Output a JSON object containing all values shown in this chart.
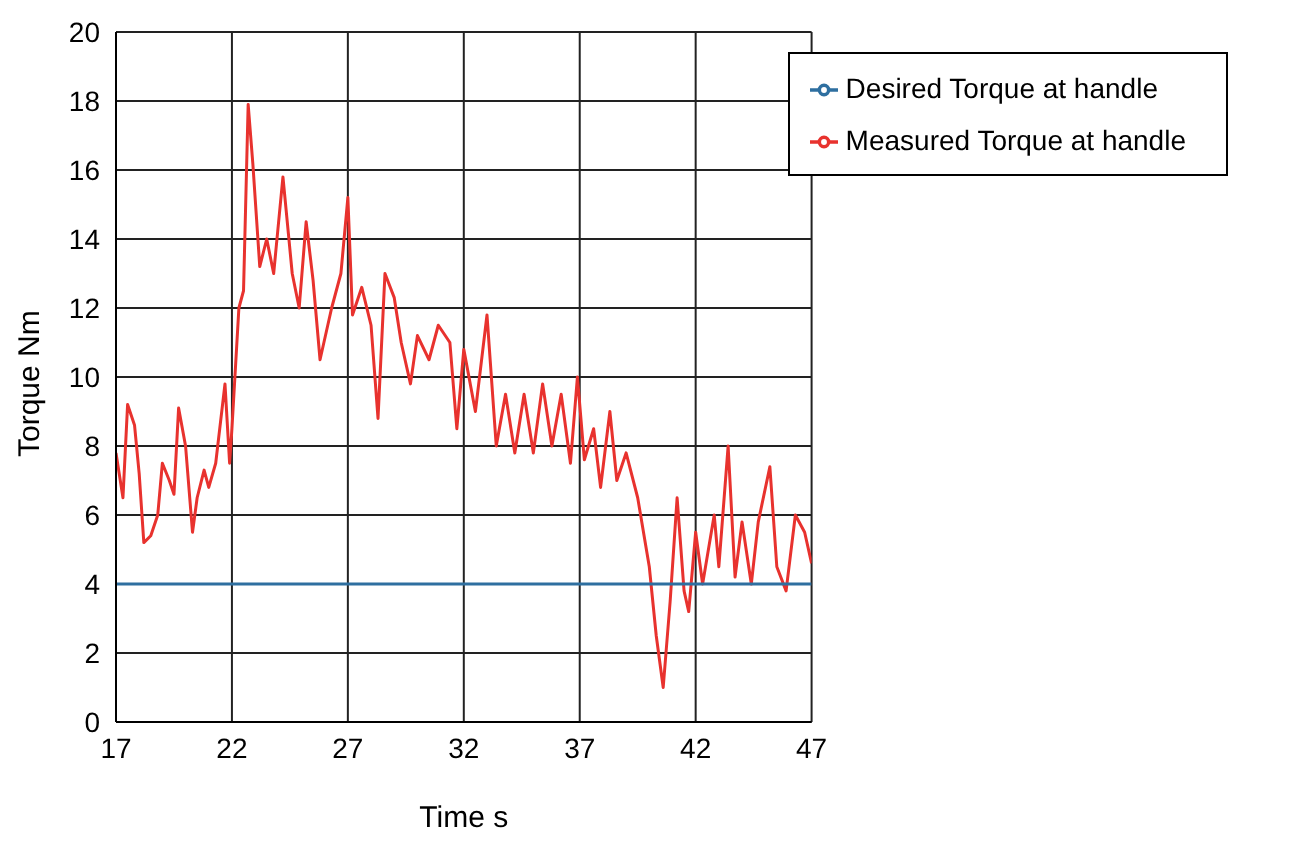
{
  "chart_data": {
    "type": "line",
    "xlabel": "Time  s",
    "ylabel": "Torque  Nm",
    "xlim": [
      17,
      47
    ],
    "xticks": [
      17,
      22,
      27,
      32,
      37,
      42,
      47
    ],
    "ylim": [
      0,
      20
    ],
    "yticks": [
      0,
      2,
      4,
      6,
      8,
      10,
      12,
      14,
      16,
      18,
      20
    ],
    "grid": true,
    "legend": "top right",
    "marker": "none",
    "line_style": "solid",
    "series": [
      {
        "name": "Measured Torque at handle",
        "color": "#e8322e",
        "x": [
          17.0,
          17.3,
          17.5,
          17.8,
          18.0,
          18.2,
          18.5,
          18.8,
          19.0,
          19.3,
          19.5,
          19.7,
          20.0,
          20.3,
          20.5,
          20.8,
          21.0,
          21.3,
          21.7,
          21.9,
          22.0,
          22.3,
          22.5,
          22.7,
          22.9,
          23.2,
          23.5,
          23.8,
          24.2,
          24.6,
          24.9,
          25.2,
          25.5,
          25.8,
          26.3,
          26.7,
          27.0,
          27.2,
          27.6,
          28.0,
          28.3,
          28.6,
          29.0,
          29.3,
          29.7,
          30.0,
          30.5,
          30.9,
          31.4,
          31.7,
          32.0,
          32.5,
          33.0,
          33.4,
          33.8,
          34.2,
          34.6,
          35.0,
          35.4,
          35.8,
          36.2,
          36.6,
          36.9,
          37.2,
          37.6,
          37.9,
          38.3,
          38.6,
          39.0,
          39.5,
          40.0,
          40.3,
          40.6,
          40.9,
          41.2,
          41.5,
          41.7,
          42.0,
          42.3,
          42.8,
          43.0,
          43.4,
          43.7,
          44.0,
          44.4,
          44.7,
          45.2,
          45.5,
          45.9,
          46.3,
          46.7,
          47.0
        ],
        "values": [
          7.8,
          6.5,
          9.2,
          8.6,
          7.2,
          5.2,
          5.4,
          6.0,
          7.5,
          7.0,
          6.6,
          9.1,
          8.0,
          5.5,
          6.5,
          7.3,
          6.8,
          7.5,
          9.8,
          7.5,
          8.5,
          12.0,
          12.5,
          17.9,
          16.2,
          13.2,
          14.0,
          13.0,
          15.8,
          13.0,
          12.0,
          14.5,
          12.8,
          10.5,
          12.0,
          13.0,
          15.2,
          11.8,
          12.6,
          11.5,
          8.8,
          13.0,
          12.3,
          11.0,
          9.8,
          11.2,
          10.5,
          11.5,
          11.0,
          8.5,
          10.8,
          9.0,
          11.8,
          8.0,
          9.5,
          7.8,
          9.5,
          7.8,
          9.8,
          8.0,
          9.5,
          7.5,
          10.0,
          7.6,
          8.5,
          6.8,
          9.0,
          7.0,
          7.8,
          6.5,
          4.5,
          2.5,
          1.0,
          3.5,
          6.5,
          3.8,
          3.2,
          5.5,
          4.0,
          6.0,
          4.5,
          8.0,
          4.2,
          5.8,
          4.0,
          5.8,
          7.4,
          4.5,
          3.8,
          6.0,
          5.5,
          4.6
        ]
      },
      {
        "name": "Desired Torque at handle",
        "color": "#2e6fa0",
        "x": [
          17,
          47
        ],
        "values": [
          4,
          4
        ]
      }
    ]
  }
}
